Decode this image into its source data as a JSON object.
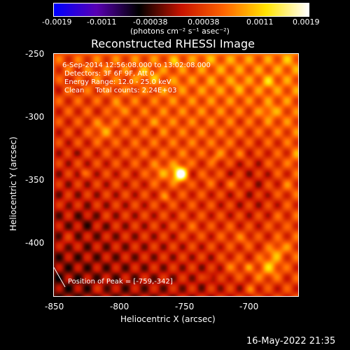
{
  "colorbar": {
    "ticks": [
      "-0.0019",
      "-0.0011",
      "-0.00038",
      "0.00038",
      "0.0011",
      "0.0019"
    ],
    "units": "(photons cm⁻² s⁻¹ asec⁻²)"
  },
  "chart_data": {
    "type": "heatmap",
    "title": "Reconstructed RHESSI Image",
    "xlabel": "Heliocentric X (arcsec)",
    "ylabel": "Heliocentric Y (arcsec)",
    "xlim": [
      -857,
      -667
    ],
    "ylim": [
      -438,
      -248
    ],
    "x_ticks": [
      "-850",
      "-800",
      "-750",
      "-700"
    ],
    "y_ticks": [
      "-250",
      "-300",
      "-350",
      "-400"
    ],
    "zlim": [
      -0.0019,
      0.0019
    ],
    "colormap": [
      "#0000ff",
      "#5a00b4",
      "#000000",
      "#c81400",
      "#ff6400",
      "#ffe400",
      "#ffffff"
    ],
    "annotations": {
      "line1": "6-Sep-2014 12:56:08.000 to 13:02:08.000",
      "line2": "Detectors: 3F 6F 9F, Att 0",
      "line3": "Energy Range: 12.0 - 25.0 keV",
      "line4": "Clean     Total counts: 2.24E+03",
      "peak": "Position of Peak = [-759,-342]"
    },
    "peak": {
      "x": -759,
      "y": -342
    }
  },
  "footer": {
    "timestamp": "16-May-2022 21:35"
  }
}
